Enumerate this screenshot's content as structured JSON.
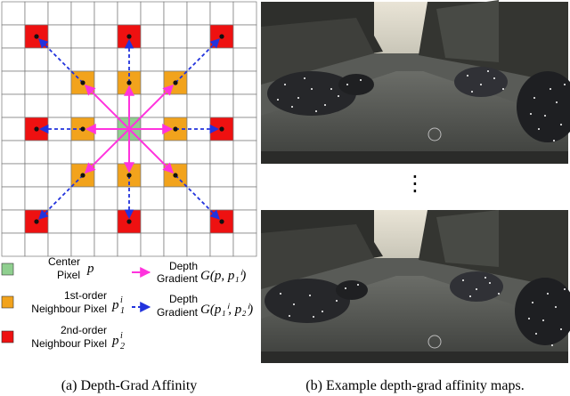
{
  "legend": {
    "center": {
      "label_line1": "Center",
      "label_line2": "Pixel",
      "symbol": "p",
      "color": "#8fcf8f"
    },
    "first_order": {
      "label_line1": "1st-order",
      "label_line2": "Neighbour Pixel",
      "symbol": "p",
      "sup": "i",
      "sub": "1",
      "color": "#f2a31c"
    },
    "second_order": {
      "label_line1": "2nd-order",
      "label_line2": "Neighbour Pixel",
      "symbol": "p",
      "sup": "i",
      "sub": "2",
      "color": "#ee1111"
    },
    "solid_arrow": {
      "label_line1": "Depth",
      "label_line2": "Gradient",
      "formula": "G(p, p₁ⁱ)",
      "color": "#ff33dd"
    },
    "dashed_arrow": {
      "label_line1": "Depth",
      "label_line2": "Gradient",
      "formula": "G(p₁ⁱ, p₂ⁱ)",
      "color": "#2233dd"
    }
  },
  "captions": {
    "left": "(a) Depth-Grad Affinity",
    "right": "(b) Example depth-grad affinity maps."
  },
  "ellipsis": "⋮"
}
